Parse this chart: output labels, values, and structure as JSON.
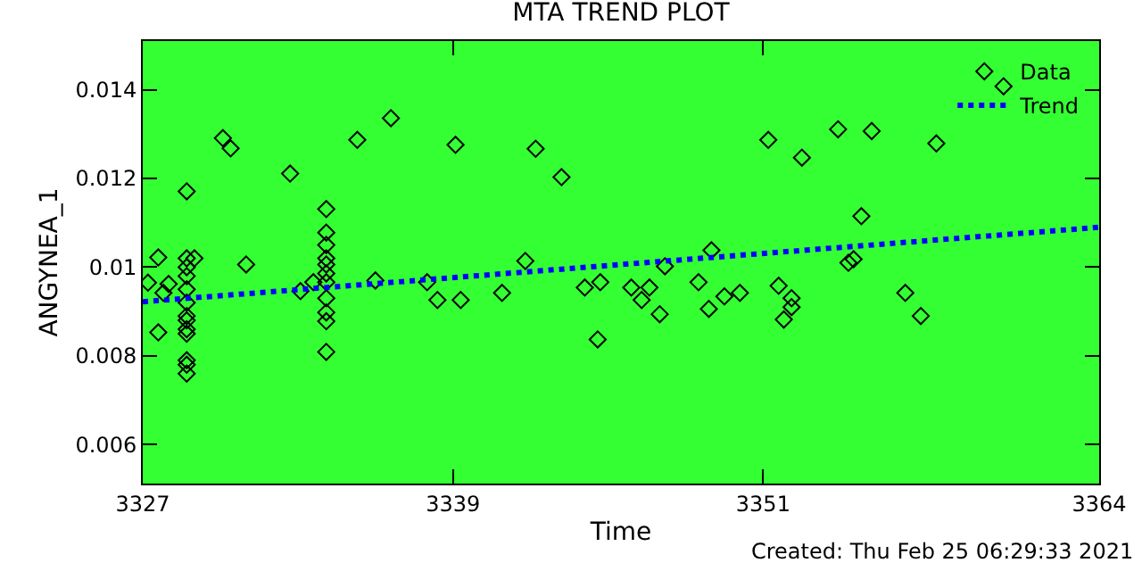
{
  "chart_data": {
    "type": "scatter",
    "title": "MTA TREND PLOT",
    "xlabel": "Time",
    "ylabel": "ANGYNEA_1",
    "xlim": [
      3327,
      3364
    ],
    "xticks": [
      3327,
      3339,
      3351,
      3364
    ],
    "ylim": [
      0.00512,
      0.0151
    ],
    "yticks": [
      0.006,
      0.008,
      0.01,
      0.012,
      0.014
    ],
    "grid": false,
    "legend": "top right",
    "annotations": [
      "Created: Thu Feb 25 06:29:33 2021"
    ],
    "series": [
      {
        "name": "Data",
        "type": "scatter",
        "color": "#000000",
        "marker": "diamond",
        "x": [
          3327.2,
          3327.6,
          3327.6,
          3327.8,
          3328.0,
          3328.7,
          3328.7,
          3328.7,
          3328.7,
          3328.7,
          3328.7,
          3328.7,
          3328.7,
          3328.7,
          3328.7,
          3328.7,
          3328.7,
          3328.7,
          3329.0,
          3330.1,
          3330.4,
          3331.0,
          3332.7,
          3334.1,
          3334.1,
          3334.1,
          3334.1,
          3334.1,
          3334.1,
          3334.1,
          3334.1,
          3334.1,
          3334.1,
          3334.1,
          3333.6,
          3333.1,
          3335.3,
          3336.0,
          3336.6,
          3338.0,
          3338.4,
          3339.1,
          3339.3,
          3342.2,
          3340.9,
          3341.8,
          3343.2,
          3344.1,
          3344.7,
          3344.6,
          3345.9,
          3346.3,
          3346.6,
          3347.0,
          3347.2,
          3348.5,
          3348.9,
          3349.0,
          3349.5,
          3350.1,
          3351.2,
          3351.6,
          3352.1,
          3352.1,
          3351.8,
          3352.5,
          3353.9,
          3355.2,
          3354.8,
          3354.3,
          3354.5,
          3356.5,
          3357.1,
          3357.7,
          3360.3
        ],
        "values": [
          0.00965,
          0.01022,
          0.00853,
          0.00942,
          0.00962,
          0.01171,
          0.0102,
          0.01,
          0.0098,
          0.0095,
          0.0092,
          0.0089,
          0.0088,
          0.0086,
          0.0085,
          0.0079,
          0.0078,
          0.0076,
          0.0102,
          0.01291,
          0.01268,
          0.01006,
          0.01211,
          0.01131,
          0.01078,
          0.0105,
          0.0102,
          0.01006,
          0.00986,
          0.00966,
          0.0093,
          0.00898,
          0.00878,
          0.00809,
          0.00966,
          0.00946,
          0.01287,
          0.0097,
          0.01336,
          0.00966,
          0.00926,
          0.01276,
          0.00926,
          0.01267,
          0.00942,
          0.01014,
          0.01203,
          0.00954,
          0.00966,
          0.00837,
          0.00954,
          0.00926,
          0.00954,
          0.00894,
          0.01002,
          0.00966,
          0.00906,
          0.01038,
          0.00934,
          0.00942,
          0.01287,
          0.00958,
          0.0093,
          0.0091,
          0.00882,
          0.01247,
          0.01311,
          0.01307,
          0.01115,
          0.0101,
          0.01018,
          0.00942,
          0.0089,
          0.01279,
          0.01408
        ]
      },
      {
        "name": "Trend",
        "type": "line",
        "color": "#0000ff",
        "line_style": "dotted",
        "marker": "none",
        "x": [
          3327,
          3364
        ],
        "values": [
          0.00922,
          0.0109
        ]
      }
    ]
  }
}
